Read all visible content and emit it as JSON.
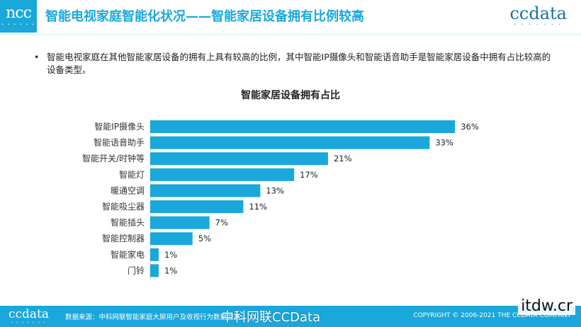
{
  "header": {
    "logo_left": "ncc",
    "title": "智能电视家庭智能化状况——智能家居设备拥有比例较高",
    "logo_right": "ccdata"
  },
  "bullet": {
    "text": "智能电视家庭在其他智能家居设备的拥有上具有较高的比例，其中智能IP摄像头和智能语音助手是智能家居设备中拥有占比较高的设备类型。"
  },
  "chart_data": {
    "type": "bar",
    "orientation": "horizontal",
    "title": "智能家居设备拥有占比",
    "categories": [
      "智能IP摄像头",
      "智能语音助手",
      "智能开关/时钟等",
      "智能灯",
      "暖通空调",
      "智能吸尘器",
      "智能插头",
      "智能控制器",
      "智能家电",
      "门铃"
    ],
    "values": [
      36,
      33,
      21,
      17,
      13,
      11,
      7,
      5,
      1,
      1
    ],
    "value_labels": [
      "36%",
      "33%",
      "21%",
      "17%",
      "13%",
      "11%",
      "7%",
      "5%",
      "1%",
      "1%"
    ],
    "xlim": [
      0,
      40
    ],
    "bar_color": "#1aa7dc",
    "grid": false,
    "legend": false
  },
  "footer": {
    "logo": "ccdata",
    "source": "数据来源：中科网联智能家庭大屏用户及收视行为数据监测",
    "weibo": "中科网联CCData",
    "copyright": "COPYRIGHT © 2006-2021 THE CCDATA COMPANY"
  },
  "watermark": "itdw.cr",
  "colors": {
    "accent": "#1aa7dc",
    "footer_bg": "#1aa7dc"
  }
}
